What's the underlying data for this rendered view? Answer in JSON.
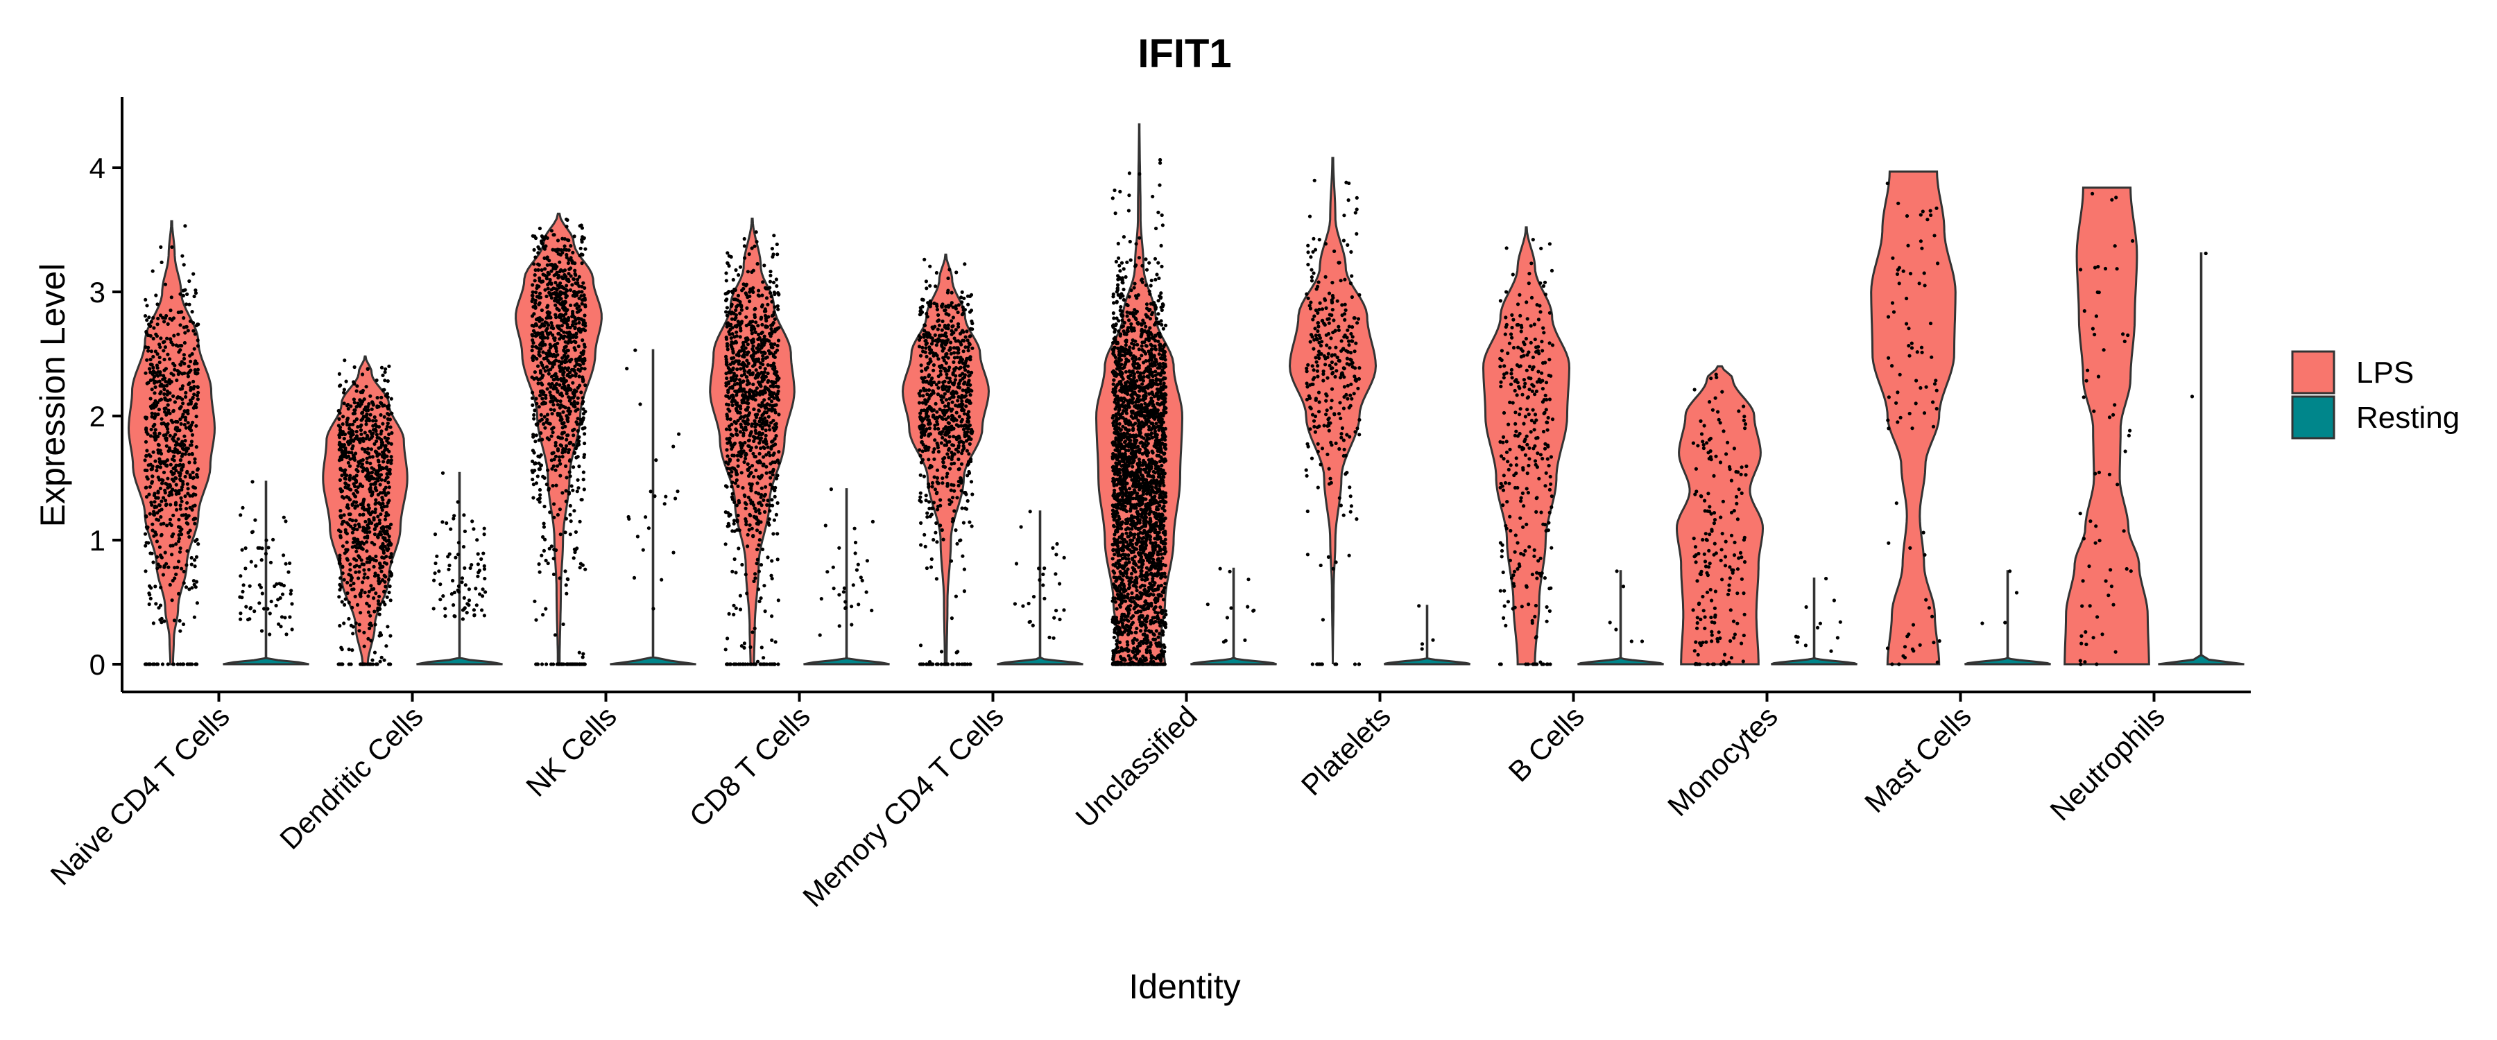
{
  "chart_data": {
    "type": "violin",
    "title": "IFIT1",
    "xlabel": "Identity",
    "ylabel": "Expression Level",
    "ylim": [
      -0.22,
      4.55
    ],
    "yticks": [
      0,
      1,
      2,
      3,
      4
    ],
    "grid": false,
    "legend_position": "right",
    "categories": [
      "Naive CD4 T Cells",
      "Dendritic Cells",
      "NK Cells",
      "CD8 T Cells",
      "Memory CD4 T Cells",
      "Unclassified",
      "Platelets",
      "B Cells",
      "Monocytes",
      "Mast Cells",
      "Neutrophils"
    ],
    "series": [
      {
        "name": "LPS",
        "color": "#F8766D",
        "violins": [
          {
            "max": 3.57,
            "profile": [
              [
                0,
                0.03
              ],
              [
                0.2,
                0.05
              ],
              [
                0.45,
                0.15
              ],
              [
                0.8,
                0.35
              ],
              [
                1.2,
                0.62
              ],
              [
                1.6,
                0.9
              ],
              [
                1.9,
                1.0
              ],
              [
                2.2,
                0.92
              ],
              [
                2.6,
                0.62
              ],
              [
                3.0,
                0.22
              ],
              [
                3.3,
                0.07
              ],
              [
                3.57,
                0.01
              ]
            ],
            "points": 720
          },
          {
            "max": 2.48,
            "profile": [
              [
                0,
                0.06
              ],
              [
                0.3,
                0.22
              ],
              [
                0.7,
                0.55
              ],
              [
                1.1,
                0.82
              ],
              [
                1.5,
                0.98
              ],
              [
                1.8,
                0.9
              ],
              [
                2.1,
                0.55
              ],
              [
                2.35,
                0.15
              ],
              [
                2.48,
                0.01
              ]
            ],
            "points": 820
          },
          {
            "max": 3.63,
            "profile": [
              [
                0,
                0.02
              ],
              [
                0.6,
                0.05
              ],
              [
                1.0,
                0.1
              ],
              [
                1.5,
                0.25
              ],
              [
                2.0,
                0.5
              ],
              [
                2.5,
                0.85
              ],
              [
                2.8,
                1.0
              ],
              [
                3.1,
                0.8
              ],
              [
                3.4,
                0.35
              ],
              [
                3.63,
                0.02
              ]
            ],
            "points": 1000
          },
          {
            "max": 3.59,
            "profile": [
              [
                0,
                0.04
              ],
              [
                0.3,
                0.06
              ],
              [
                0.8,
                0.15
              ],
              [
                1.3,
                0.4
              ],
              [
                1.8,
                0.75
              ],
              [
                2.2,
                0.98
              ],
              [
                2.5,
                0.9
              ],
              [
                2.9,
                0.5
              ],
              [
                3.2,
                0.2
              ],
              [
                3.59,
                0.01
              ]
            ],
            "points": 1000
          },
          {
            "max": 3.3,
            "profile": [
              [
                0,
                0.02
              ],
              [
                0.5,
                0.04
              ],
              [
                1.0,
                0.12
              ],
              [
                1.5,
                0.42
              ],
              [
                1.9,
                0.85
              ],
              [
                2.2,
                1.0
              ],
              [
                2.5,
                0.8
              ],
              [
                2.8,
                0.45
              ],
              [
                3.1,
                0.15
              ],
              [
                3.3,
                0.01
              ]
            ],
            "points": 780
          },
          {
            "max": 4.35,
            "profile": [
              [
                0,
                0.6
              ],
              [
                0.2,
                0.5
              ],
              [
                0.5,
                0.6
              ],
              [
                1.0,
                0.8
              ],
              [
                1.5,
                0.95
              ],
              [
                2.0,
                1.0
              ],
              [
                2.4,
                0.8
              ],
              [
                2.8,
                0.38
              ],
              [
                3.2,
                0.1
              ],
              [
                3.6,
                0.03
              ],
              [
                4.35,
                0.005
              ]
            ],
            "points": 2600
          },
          {
            "max": 4.08,
            "profile": [
              [
                0,
                0.0
              ],
              [
                0.6,
                0.02
              ],
              [
                1.0,
                0.06
              ],
              [
                1.5,
                0.2
              ],
              [
                2.0,
                0.62
              ],
              [
                2.4,
                1.0
              ],
              [
                2.8,
                0.8
              ],
              [
                3.2,
                0.3
              ],
              [
                3.6,
                0.06
              ],
              [
                4.08,
                0.01
              ]
            ],
            "points": 320
          },
          {
            "max": 3.52,
            "profile": [
              [
                0,
                0.2
              ],
              [
                0.5,
                0.3
              ],
              [
                1.0,
                0.45
              ],
              [
                1.5,
                0.7
              ],
              [
                2.0,
                0.95
              ],
              [
                2.4,
                1.0
              ],
              [
                2.8,
                0.6
              ],
              [
                3.2,
                0.2
              ],
              [
                3.52,
                0.01
              ]
            ],
            "points": 320
          },
          {
            "max": 2.4,
            "profile": [
              [
                0,
                0.9
              ],
              [
                0.4,
                0.85
              ],
              [
                0.8,
                0.9
              ],
              [
                1.1,
                1.0
              ],
              [
                1.4,
                0.7
              ],
              [
                1.7,
                0.95
              ],
              [
                2.0,
                0.8
              ],
              [
                2.3,
                0.3
              ],
              [
                2.4,
                0.05
              ]
            ],
            "points": 190
          },
          {
            "max": 3.97,
            "profile": [
              [
                0,
                0.6
              ],
              [
                0.4,
                0.5
              ],
              [
                0.8,
                0.25
              ],
              [
                1.2,
                0.15
              ],
              [
                1.6,
                0.28
              ],
              [
                2.0,
                0.6
              ],
              [
                2.5,
                0.95
              ],
              [
                3.0,
                0.98
              ],
              [
                3.5,
                0.72
              ],
              [
                3.97,
                0.55
              ]
            ],
            "points": 85
          },
          {
            "max": 3.84,
            "profile": [
              [
                0,
                0.98
              ],
              [
                0.4,
                0.95
              ],
              [
                0.8,
                0.75
              ],
              [
                1.1,
                0.5
              ],
              [
                1.5,
                0.3
              ],
              [
                1.9,
                0.32
              ],
              [
                2.3,
                0.55
              ],
              [
                2.8,
                0.65
              ],
              [
                3.3,
                0.7
              ],
              [
                3.84,
                0.55
              ]
            ],
            "points": 65
          }
        ]
      },
      {
        "name": "Resting",
        "color": "#00868B",
        "violins": [
          {
            "max": 1.47,
            "profile": [
              [
                0,
                1.0
              ],
              [
                0.05,
                0.005
              ],
              [
                1.47,
                0.005
              ]
            ],
            "points": 70
          },
          {
            "max": 1.54,
            "profile": [
              [
                0,
                1.0
              ],
              [
                0.05,
                0.005
              ],
              [
                1.54,
                0.005
              ]
            ],
            "points": 80
          },
          {
            "max": 2.53,
            "profile": [
              [
                0,
                1.0
              ],
              [
                0.05,
                0.005
              ],
              [
                2.53,
                0.005
              ]
            ],
            "points": 22
          },
          {
            "max": 1.41,
            "profile": [
              [
                0,
                1.0
              ],
              [
                0.05,
                0.005
              ],
              [
                1.41,
                0.005
              ]
            ],
            "points": 30
          },
          {
            "max": 1.23,
            "profile": [
              [
                0,
                1.0
              ],
              [
                0.05,
                0.005
              ],
              [
                1.23,
                0.005
              ]
            ],
            "points": 28
          },
          {
            "max": 0.77,
            "profile": [
              [
                0,
                1.0
              ],
              [
                0.05,
                0.005
              ],
              [
                0.77,
                0.005
              ]
            ],
            "points": 12
          },
          {
            "max": 0.47,
            "profile": [
              [
                0,
                1.0
              ],
              [
                0.05,
                0.005
              ],
              [
                0.47,
                0.005
              ]
            ],
            "points": 4
          },
          {
            "max": 0.75,
            "profile": [
              [
                0,
                1.0
              ],
              [
                0.05,
                0.005
              ],
              [
                0.75,
                0.005
              ]
            ],
            "points": 6
          },
          {
            "max": 0.69,
            "profile": [
              [
                0,
                1.0
              ],
              [
                0.05,
                0.005
              ],
              [
                0.69,
                0.005
              ]
            ],
            "points": 12
          },
          {
            "max": 0.75,
            "profile": [
              [
                0,
                1.0
              ],
              [
                0.05,
                0.005
              ],
              [
                0.75,
                0.005
              ]
            ],
            "points": 4
          },
          {
            "max": 3.31,
            "profile": [
              [
                0,
                1.0
              ],
              [
                0.05,
                0.005
              ],
              [
                3.31,
                0.005
              ]
            ],
            "points": 2
          }
        ]
      }
    ]
  },
  "legend": {
    "items": [
      {
        "label": "LPS",
        "color": "#F8766D"
      },
      {
        "label": "Resting",
        "color": "#00868B"
      }
    ]
  }
}
